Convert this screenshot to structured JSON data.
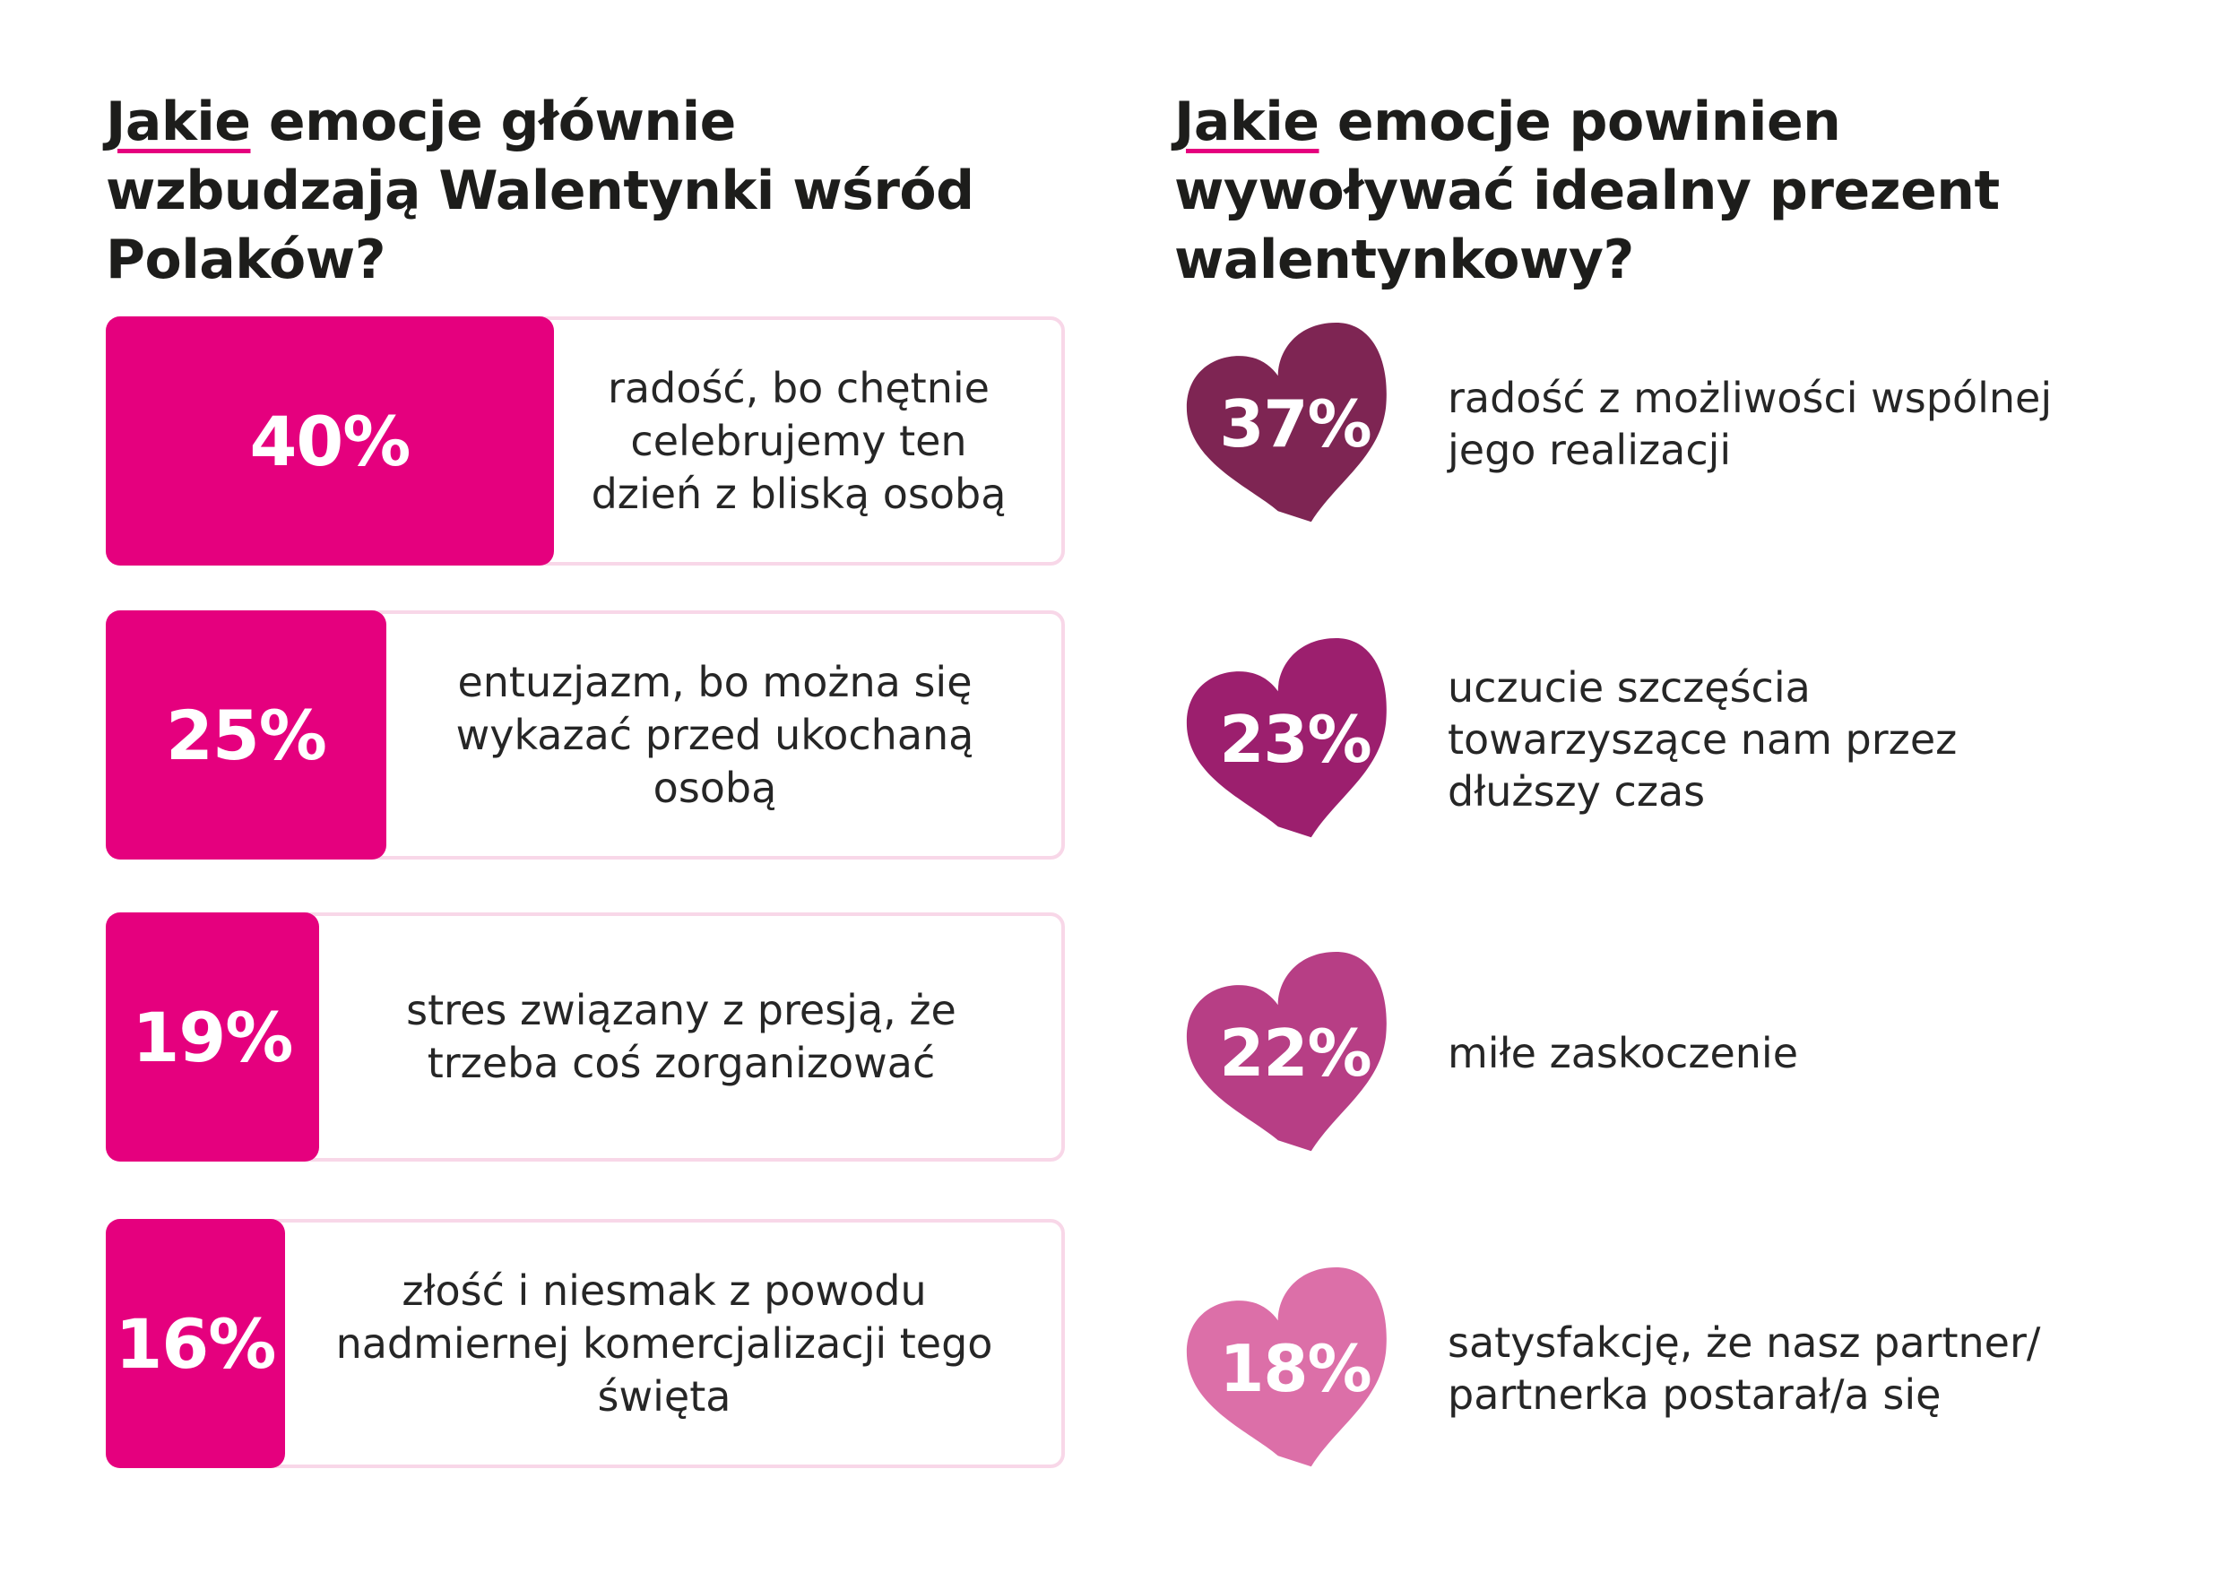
{
  "left_panel": {
    "title_highlight": "Jakie",
    "title_rest": " emocje główniewzbudzają Walentynki wśród Polaków?",
    "title_line1_rest": " emocje główniewzbudzają",
    "title_line2": "Walentynki wśród",
    "title_line3": "Polaków?"
  },
  "right_panel": {
    "title_highlight": "Jakie",
    "title_line1_rest": " emocje powinien",
    "title_line2": "wywoływać idealny prezent",
    "title_line3": "walentynkowy?"
  },
  "chart_data": [
    {
      "type": "bar",
      "title": "Jakie emocje głównie wzbudzają Walentynki wśród Polaków?",
      "categories": [
        "radość, bo chętnie celebrujemy ten dzień z bliską osobą",
        "entuzjazm, bo można się wykazać przed ukochaną osobą",
        "stres związany z presją, że trzeba coś zorganizować",
        "złość i niesmak z powodu nadmiernej komercjalizacji tego święta"
      ],
      "values": [
        40,
        25,
        19,
        16
      ],
      "labels": [
        "40%",
        "25%",
        "19%",
        "16%"
      ],
      "lines": [
        [
          "radość, bo chętnie",
          "celebrujemy ten",
          "dzień z bliską osobą"
        ],
        [
          "entuzjazm, bo można się",
          "wykazać przed ukochaną",
          "osobą"
        ],
        [
          "stres związany z presją, że",
          "trzeba coś zorganizować"
        ],
        [
          "złość i niesmak z powodu",
          "nadmiernej komercjalizacji tego",
          "święta"
        ]
      ],
      "color": "#e5007e"
    },
    {
      "type": "table",
      "title": "Jakie emocje powinien wywoływać idealny prezent walentynkowy?",
      "categories": [
        "radość z możliwości wspólnej jego realizacji",
        "uczucie szczęścia towarzyszące nam przez dłuższy czas",
        "miłe zaskoczenie",
        "satysfakcję, że nasz partner/ partnerka postarał/a się"
      ],
      "values": [
        37,
        23,
        22,
        18
      ],
      "labels": [
        "37%",
        "23%",
        "22%",
        "18%"
      ],
      "lines": [
        [
          "radość z możliwości wspólnej",
          "jego realizacji"
        ],
        [
          "uczucie szczęścia",
          "towarzyszące nam przez",
          "dłuższy czas"
        ],
        [
          "miłe zaskoczenie"
        ],
        [
          "satysfakcję, że nasz partner/",
          "partnerka postarał/a się"
        ]
      ],
      "colors": [
        "#7e2553",
        "#9c1f6e",
        "#b73e85",
        "#dc6fa8"
      ]
    }
  ]
}
